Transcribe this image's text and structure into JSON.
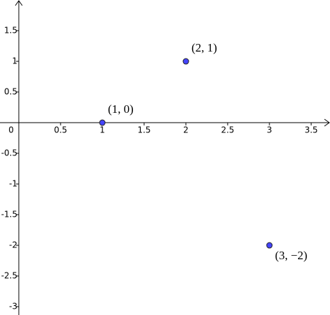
{
  "chart_data": {
    "type": "scatter",
    "x": [
      1,
      2,
      3
    ],
    "values": [
      0,
      1,
      -2
    ],
    "point_labels": [
      "(1, 0)",
      "(2, 1)",
      "(3, −2)"
    ],
    "color": "#4444ff",
    "xlim": [
      -0.225,
      3.725
    ],
    "ylim": [
      -3.136,
      2
    ],
    "xticks": [
      0,
      0.5,
      1,
      1.5,
      2,
      2.5,
      3,
      3.5
    ],
    "yticks": [
      1.5,
      1,
      0.5,
      -0.5,
      -1,
      -1.5,
      -2,
      -2.5,
      -3
    ],
    "grid": false
  }
}
